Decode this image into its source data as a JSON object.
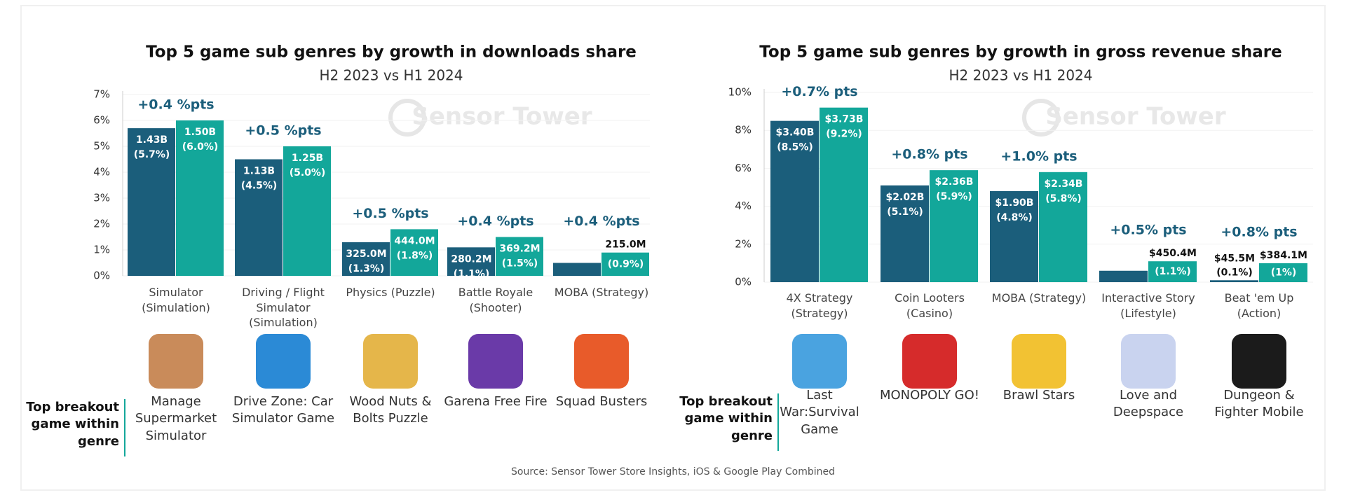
{
  "chart_data": [
    {
      "type": "bar",
      "title": "Top 5 game sub genres by growth in downloads share",
      "subtitle": "H2 2023 vs H1 2024",
      "watermark": "Sensor Tower",
      "categories": [
        "Simulator (Simulation)",
        "Driving / Flight Simulator (Simulation)",
        "Physics (Puzzle)",
        "Battle Royale (Shooter)",
        "MOBA (Strategy)"
      ],
      "series": [
        {
          "color": "#1b5e7b",
          "values": [
            5.7,
            4.5,
            1.3,
            1.1,
            0.5
          ],
          "amount_labels": [
            "1.43B",
            "1.13B",
            "325.0M",
            "280.2M",
            null
          ],
          "value_labels": [
            "(5.7%)",
            "(4.5%)",
            "(1.3%)",
            "(1.1%)",
            null
          ]
        },
        {
          "color": "#13a79a",
          "values": [
            6.0,
            5.0,
            1.8,
            1.5,
            0.9
          ],
          "amount_labels": [
            "1.50B",
            "1.25B",
            "444.0M",
            "369.2M",
            "215.0M"
          ],
          "value_labels": [
            "(6.0%)",
            "(5.0%)",
            "(1.8%)",
            "(1.5%)",
            "(0.9%)"
          ]
        }
      ],
      "deltas": [
        "+0.4 %pts",
        "+0.5 %pts",
        "+0.5 %pts",
        "+0.4 %pts",
        "+0.4 %pts"
      ],
      "breakout_label": "Top breakout game within genre",
      "games": [
        "Manage Supermarket Simulator",
        "Drive Zone: Car Simulator Game",
        "Wood Nuts & Bolts Puzzle",
        "Garena Free Fire",
        "Squad Busters"
      ],
      "ylim": [
        0,
        7
      ],
      "yticks": [
        {
          "value": 0,
          "label": "0%"
        },
        {
          "value": 1,
          "label": "1%"
        },
        {
          "value": 2,
          "label": "2%"
        },
        {
          "value": 3,
          "label": "3%"
        },
        {
          "value": 4,
          "label": "4%"
        },
        {
          "value": 5,
          "label": "5%"
        },
        {
          "value": 6,
          "label": "6%"
        },
        {
          "value": 7,
          "label": "7%"
        }
      ],
      "grid": true
    },
    {
      "type": "bar",
      "title": "Top 5 game sub genres by growth in gross revenue share",
      "subtitle": "H2 2023 vs H1 2024",
      "watermark": "Sensor Tower",
      "categories": [
        "4X Strategy (Strategy)",
        "Coin Looters (Casino)",
        "MOBA (Strategy)",
        "Interactive Story (Lifestyle)",
        "Beat 'em Up (Action)"
      ],
      "series": [
        {
          "color": "#1b5e7b",
          "values": [
            8.5,
            5.1,
            4.8,
            0.6,
            0.1
          ],
          "amount_labels": [
            "$3.40B",
            "$2.02B",
            "$1.90B",
            null,
            "$45.5M"
          ],
          "value_labels": [
            "(8.5%)",
            "(5.1%)",
            "(4.8%)",
            null,
            "(0.1%)"
          ]
        },
        {
          "color": "#13a79a",
          "values": [
            9.2,
            5.9,
            5.8,
            1.1,
            1
          ],
          "amount_labels": [
            "$3.73B",
            "$2.36B",
            "$2.34B",
            "$450.4M",
            "$384.1M"
          ],
          "value_labels": [
            "(9.2%)",
            "(5.9%)",
            "(5.8%)",
            "(1.1%)",
            "(1%)"
          ]
        }
      ],
      "deltas": [
        "+0.7% pts",
        "+0.8% pts",
        "+1.0% pts",
        "+0.5% pts",
        "+0.8% pts"
      ],
      "breakout_label": "Top breakout game within genre",
      "games": [
        "Last War:Survival Game",
        "MONOPOLY GO!",
        "Brawl Stars",
        "Love and Deepspace",
        "Dungeon & Fighter Mobile"
      ],
      "ylim": [
        0,
        10
      ],
      "yticks": [
        {
          "value": 0,
          "label": "0%"
        },
        {
          "value": 2,
          "label": "2%"
        },
        {
          "value": 4,
          "label": "4%"
        },
        {
          "value": 6,
          "label": "6%"
        },
        {
          "value": 8,
          "label": "8%"
        },
        {
          "value": 10,
          "label": "10%"
        }
      ],
      "grid": true
    }
  ],
  "source": "Source: Sensor Tower Store Insights, iOS & Google Play Combined"
}
